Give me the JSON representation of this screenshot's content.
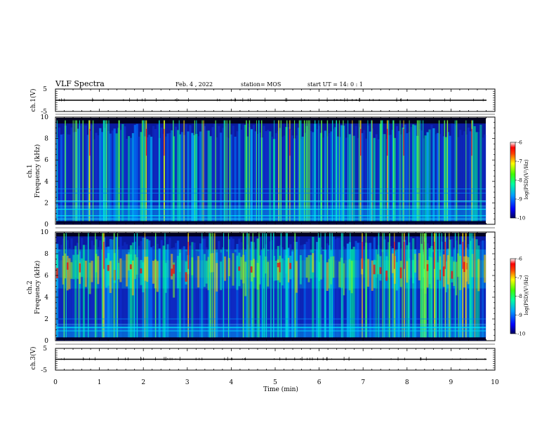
{
  "header": {
    "title": "VLF Spectra",
    "date": "Feb. 4 , 2022",
    "station": "station= MOS",
    "start": "start  UT =  14: 0  : 1"
  },
  "colors": {
    "background_spectrogram": "#0a0a18",
    "noise_low": "#1a3cff",
    "noise_mid": "#00c8ff",
    "band_mid": "#00e060",
    "band_high": "#ffd000",
    "peak": "#e00000"
  },
  "chart_data": [
    {
      "type": "line",
      "name": "ch1-waveform",
      "ylabel": "ch.1(V)",
      "ylim": [
        -5,
        5
      ],
      "y_ticks": [
        "5",
        "-5"
      ],
      "x": [
        0,
        10
      ],
      "y": [
        0,
        0
      ]
    },
    {
      "type": "heatmap",
      "name": "ch1-spectrogram",
      "ylabel": "ch.1",
      "ylabel2": "Frequency (kHz)",
      "ylim": [
        0,
        10
      ],
      "y_ticks": [
        "0",
        "2",
        "4",
        "6",
        "8",
        "10"
      ],
      "colorbar": {
        "label": "log(PSD)(V²/Hz)",
        "ticks": [
          "-6",
          "-7",
          "-8",
          "-9",
          "-10"
        ],
        "range": [
          -10,
          -6
        ]
      }
    },
    {
      "type": "heatmap",
      "name": "ch2-spectrogram",
      "ylabel": "ch.2",
      "ylabel2": "Frequency (kHz)",
      "ylim": [
        0,
        10
      ],
      "y_ticks": [
        "0",
        "2",
        "4",
        "6",
        "8",
        "10"
      ],
      "colorbar": {
        "label": "log(PSD)(V²/Hz)",
        "ticks": [
          "-6",
          "-7",
          "-8",
          "-9",
          "-10"
        ],
        "range": [
          -10,
          -6
        ]
      }
    },
    {
      "type": "line",
      "name": "ch3-waveform",
      "ylabel": "ch.3(V)",
      "ylim": [
        -5,
        5
      ],
      "y_ticks": [
        "5",
        "-5"
      ],
      "x": [
        0,
        10
      ],
      "y": [
        0,
        0
      ]
    }
  ],
  "x_axis": {
    "label": "Time (min)",
    "ticks": [
      "0",
      "1",
      "2",
      "3",
      "4",
      "5",
      "6",
      "7",
      "8",
      "9",
      "10"
    ],
    "range": [
      0,
      10
    ]
  }
}
